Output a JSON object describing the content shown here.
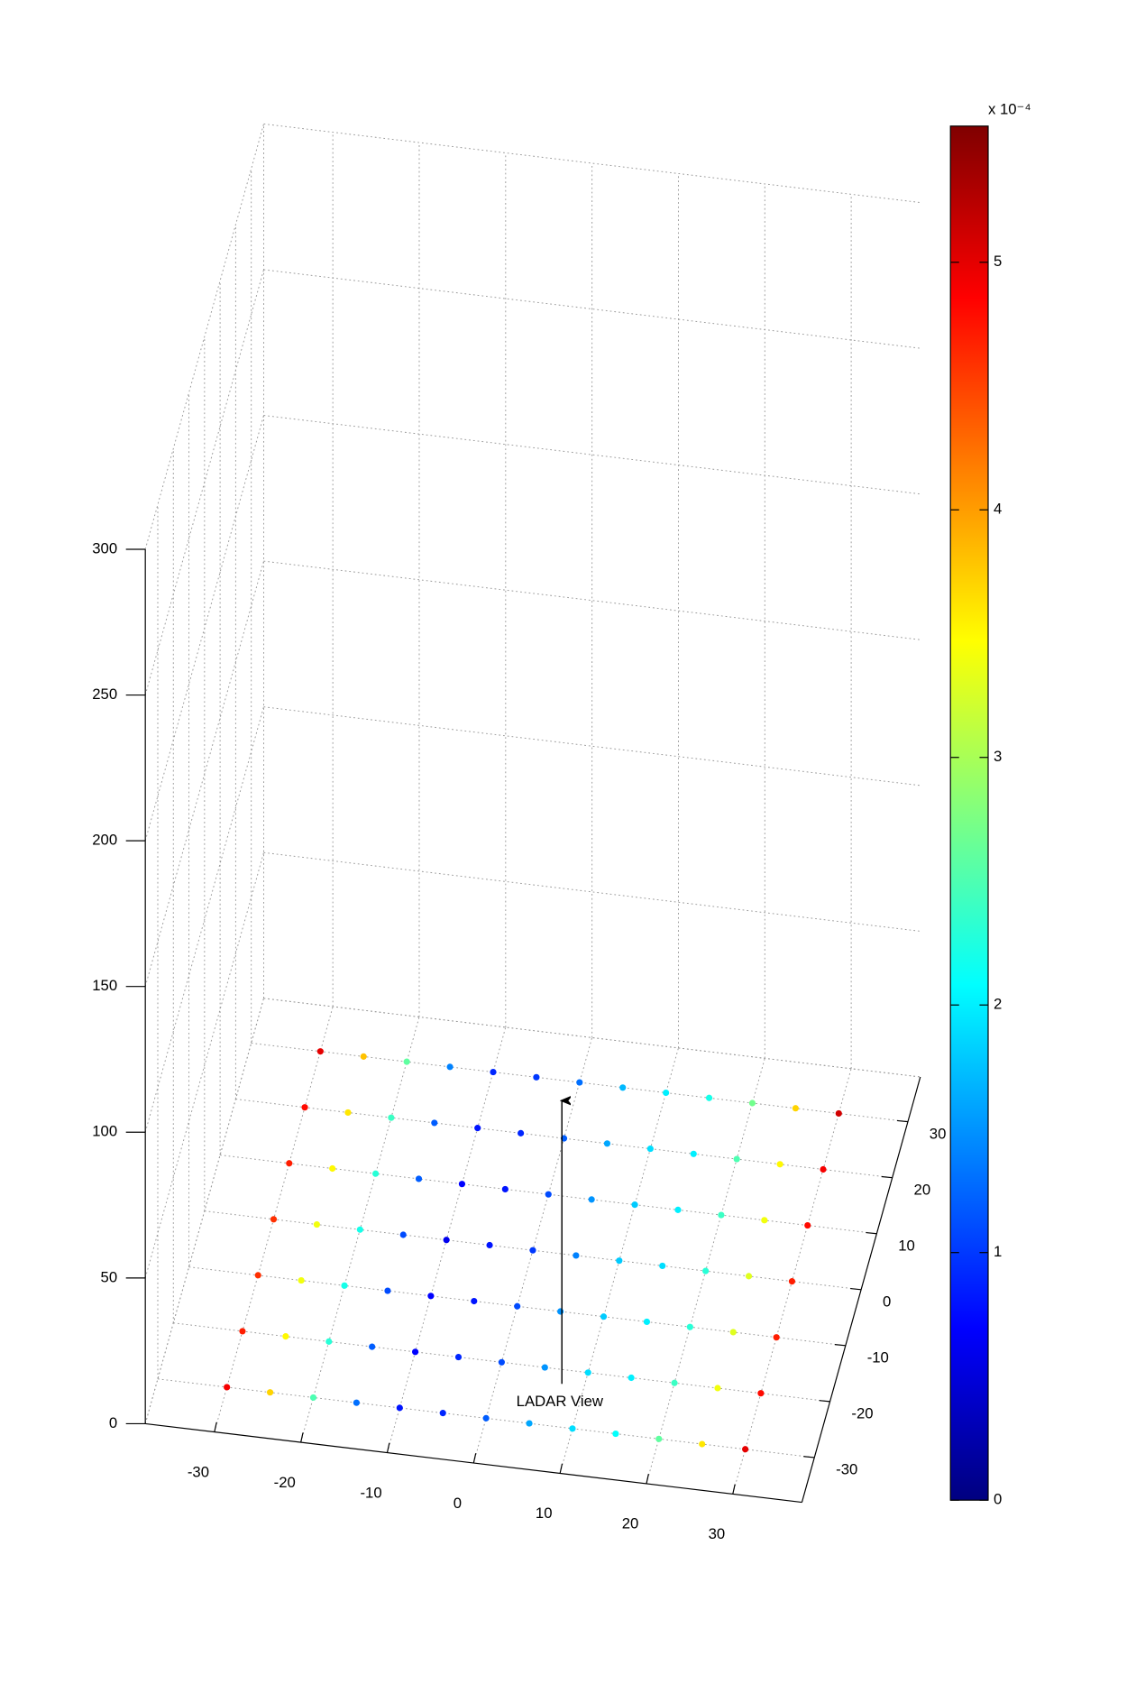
{
  "chart_data": {
    "type": "scatter3d",
    "annotation": "LADAR View",
    "colorbar_label": "x 10⁻⁴",
    "x": [
      -30,
      -25,
      -20,
      -15,
      -10,
      -5,
      0,
      5,
      10,
      15,
      20,
      25,
      30
    ],
    "y": [
      -30,
      -20,
      -10,
      0,
      10,
      20,
      30
    ],
    "z": 0,
    "values": [
      [
        4.9,
        3.7,
        2.5,
        1.3,
        0.8,
        0.9,
        1.2,
        1.6,
        1.9,
        2.1,
        2.6,
        3.6,
        5.0
      ],
      [
        4.7,
        3.5,
        2.3,
        1.2,
        0.7,
        0.9,
        1.1,
        1.5,
        1.9,
        2.0,
        2.4,
        3.4,
        4.8
      ],
      [
        4.6,
        3.4,
        2.2,
        1.1,
        0.7,
        0.8,
        1.1,
        1.5,
        1.8,
        2.0,
        2.3,
        3.3,
        4.7
      ],
      [
        4.6,
        3.4,
        2.2,
        1.1,
        0.6,
        0.8,
        1.0,
        1.4,
        1.8,
        1.9,
        2.3,
        3.3,
        4.7
      ],
      [
        4.7,
        3.5,
        2.3,
        1.2,
        0.7,
        0.8,
        1.1,
        1.5,
        1.8,
        2.0,
        2.4,
        3.4,
        4.8
      ],
      [
        4.8,
        3.6,
        2.4,
        1.2,
        0.8,
        0.9,
        1.2,
        1.6,
        1.9,
        2.0,
        2.5,
        3.5,
        4.9
      ],
      [
        5.0,
        3.8,
        2.6,
        1.4,
        0.9,
        1.0,
        1.3,
        1.7,
        2.0,
        2.2,
        2.7,
        3.7,
        5.1
      ]
    ],
    "colormap": "jet",
    "xlim": [
      -38,
      38
    ],
    "ylim": [
      -38,
      38
    ],
    "zlim": [
      0,
      300
    ],
    "clim": [
      0,
      5.55
    ],
    "xticks": [
      -30,
      -20,
      -10,
      0,
      10,
      20,
      30
    ],
    "yticks": [
      -30,
      -20,
      -10,
      0,
      10,
      20,
      30
    ],
    "zticks": [
      0,
      50,
      100,
      150,
      200,
      250,
      300
    ],
    "cticks": [
      0,
      1,
      2,
      3,
      4,
      5
    ],
    "grid": true
  }
}
